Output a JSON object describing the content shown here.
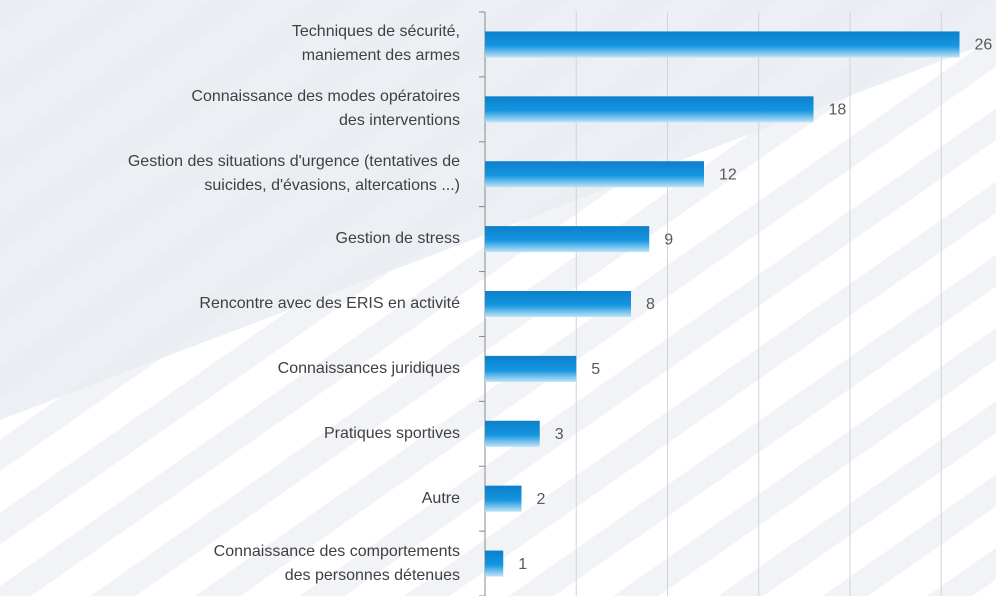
{
  "chart_data": {
    "type": "bar",
    "orientation": "horizontal",
    "categories": [
      "Techniques de sécurité,\nmaniement des armes",
      "Connaissance des modes opératoires\ndes interventions",
      "Gestion des situations d'urgence (tentatives de\nsuicides, d'évasions, altercations ...)",
      "Gestion de stress",
      "Rencontre avec des ERIS en activité",
      "Connaissances juridiques",
      "Pratiques sportives",
      "Autre",
      "Connaissance des comportements\ndes personnes détenues"
    ],
    "values": [
      26,
      18,
      12,
      9,
      8,
      5,
      3,
      2,
      1
    ],
    "color": "#0d8ad6",
    "xlim": [
      0,
      28
    ],
    "xticks": [
      0,
      5,
      10,
      15,
      20,
      25
    ],
    "grid": true
  }
}
